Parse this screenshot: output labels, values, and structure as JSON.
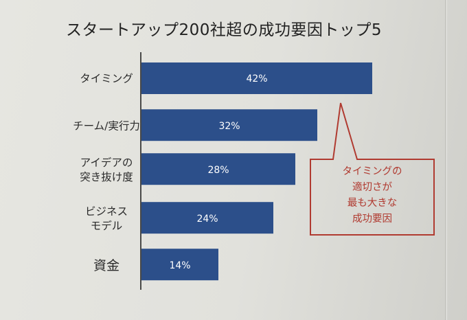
{
  "chart_data": {
    "type": "bar",
    "orientation": "horizontal",
    "title": "スタートアップ200社超の成功要因トップ5",
    "categories": [
      [
        "タイミング"
      ],
      [
        "チーム/実行力"
      ],
      [
        "アイデアの",
        "突き抜け度"
      ],
      [
        "ビジネス",
        "モデル"
      ],
      [
        "資金"
      ]
    ],
    "values": [
      42,
      32,
      28,
      24,
      14
    ],
    "data_labels": [
      "42%",
      "32%",
      "28%",
      "24%",
      "14%"
    ],
    "unit": "%",
    "bar_color": "#2c4f8a",
    "grid": false,
    "legend": "none",
    "annotation": {
      "lines": [
        "タイミングの",
        "適切さが",
        "最も大きな",
        "成功要因"
      ],
      "border_color": "#b03a30",
      "points_to": "タイミング"
    }
  }
}
